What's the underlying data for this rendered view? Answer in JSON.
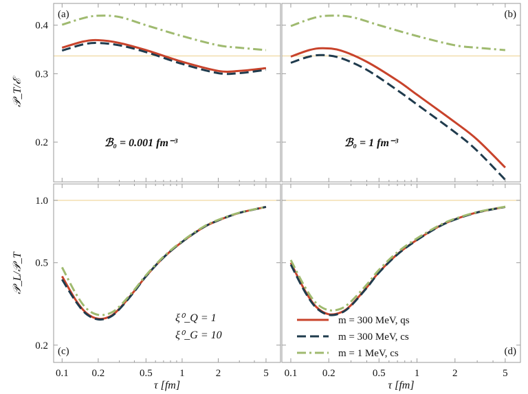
{
  "chart_data": {
    "type": "line",
    "x_label": "τ [fm]",
    "x_ticks": [
      "0.1",
      "0.2",
      "0.5",
      "1",
      "2",
      "5"
    ],
    "x_tick_values": [
      0.1,
      0.2,
      0.5,
      1,
      2,
      5
    ],
    "x_range": [
      0.085,
      6.6
    ],
    "x_scale": "log",
    "legend": [
      {
        "label": "m = 300 MeV, qs",
        "color": "#c8432b",
        "dash": "solid"
      },
      {
        "label": "m = 300 MeV, cs",
        "color": "#1f3b4d",
        "dash": "dashed"
      },
      {
        "label": "m = 1 MeV, cs",
        "color": "#9fba6f",
        "dash": "dashdot"
      }
    ],
    "reference_color": "#f0d9a0",
    "panels": [
      {
        "id": "a",
        "label": "(a)",
        "ylabel": "𝒫_T/ℰ",
        "y_scale": "log",
        "y_range": [
          0.158,
          0.455
        ],
        "y_ticks": [
          "0.2",
          "0.3",
          "0.4"
        ],
        "y_tick_values": [
          0.2,
          0.3,
          0.4
        ],
        "annotation": "ℬ₀ = 0.001 fm⁻³",
        "reference": 0.3333,
        "series": [
          {
            "name": "m = 300 MeV, qs",
            "x": [
              0.1,
              0.15,
              0.2,
              0.3,
              0.5,
              1,
              2,
              3,
              5
            ],
            "y": [
              0.35,
              0.363,
              0.366,
              0.36,
              0.345,
              0.322,
              0.305,
              0.305,
              0.31
            ]
          },
          {
            "name": "m = 300 MeV, cs",
            "x": [
              0.1,
              0.15,
              0.2,
              0.3,
              0.5,
              1,
              2,
              3,
              5
            ],
            "y": [
              0.344,
              0.357,
              0.36,
              0.355,
              0.341,
              0.318,
              0.301,
              0.301,
              0.307
            ]
          },
          {
            "name": "m = 1 MeV, cs",
            "x": [
              0.1,
              0.15,
              0.2,
              0.3,
              0.5,
              1,
              2,
              3,
              5
            ],
            "y": [
              0.401,
              0.417,
              0.423,
              0.42,
              0.4,
              0.375,
              0.355,
              0.35,
              0.345
            ]
          }
        ]
      },
      {
        "id": "b",
        "label": "(b)",
        "ylabel": "",
        "y_scale": "log",
        "y_range": [
          0.158,
          0.455
        ],
        "y_ticks": [
          "0.2",
          "0.3",
          "0.4"
        ],
        "y_tick_values": [
          0.2,
          0.3,
          0.4
        ],
        "annotation": "ℬ₀ = 1 fm⁻³",
        "reference": 0.3333,
        "series": [
          {
            "name": "m = 300 MeV, qs",
            "x": [
              0.1,
              0.14,
              0.18,
              0.25,
              0.4,
              0.7,
              1,
              2,
              3,
              5
            ],
            "y": [
              0.332,
              0.345,
              0.349,
              0.344,
              0.322,
              0.288,
              0.265,
              0.225,
              0.203,
              0.172
            ]
          },
          {
            "name": "m = 300 MeV, cs",
            "x": [
              0.1,
              0.14,
              0.18,
              0.25,
              0.4,
              0.7,
              1,
              2,
              3,
              5
            ],
            "y": [
              0.32,
              0.332,
              0.335,
              0.329,
              0.307,
              0.272,
              0.25,
              0.212,
              0.19,
              0.16
            ]
          },
          {
            "name": "m = 1 MeV, cs",
            "x": [
              0.1,
              0.15,
              0.2,
              0.3,
              0.5,
              1,
              2,
              3,
              5
            ],
            "y": [
              0.398,
              0.417,
              0.423,
              0.42,
              0.4,
              0.375,
              0.355,
              0.35,
              0.345
            ]
          }
        ]
      },
      {
        "id": "c",
        "label": "(c)",
        "ylabel": "𝒫_L/𝒫_T",
        "y_scale": "log",
        "y_range": [
          0.165,
          1.2
        ],
        "y_ticks": [
          "0.2",
          "0.5",
          "1.0"
        ],
        "y_tick_values": [
          0.2,
          0.5,
          1.0
        ],
        "annotation_lines": [
          "ξ⁰_Q = 1",
          "ξ⁰_G = 10"
        ],
        "reference": 1.0,
        "series": [
          {
            "name": "m = 300 MeV, qs",
            "x": [
              0.1,
              0.13,
              0.16,
              0.2,
              0.25,
              0.3,
              0.4,
              0.5,
              0.7,
              1,
              1.5,
              2,
              3,
              5
            ],
            "y": [
              0.43,
              0.33,
              0.285,
              0.268,
              0.275,
              0.3,
              0.365,
              0.43,
              0.53,
              0.63,
              0.74,
              0.8,
              0.87,
              0.93
            ]
          },
          {
            "name": "m = 300 MeV, cs",
            "x": [
              0.1,
              0.13,
              0.16,
              0.2,
              0.25,
              0.3,
              0.4,
              0.5,
              0.7,
              1,
              1.5,
              2,
              3,
              5
            ],
            "y": [
              0.415,
              0.325,
              0.282,
              0.266,
              0.273,
              0.298,
              0.363,
              0.43,
              0.53,
              0.63,
              0.74,
              0.8,
              0.87,
              0.93
            ]
          },
          {
            "name": "m = 1 MeV, cs",
            "x": [
              0.1,
              0.13,
              0.16,
              0.2,
              0.25,
              0.3,
              0.4,
              0.5,
              0.7,
              1,
              1.5,
              2,
              3,
              5
            ],
            "y": [
              0.475,
              0.355,
              0.3,
              0.28,
              0.285,
              0.307,
              0.37,
              0.435,
              0.535,
              0.635,
              0.745,
              0.805,
              0.872,
              0.93
            ]
          }
        ]
      },
      {
        "id": "d",
        "label": "(d)",
        "ylabel": "",
        "y_scale": "log",
        "y_range": [
          0.165,
          1.2
        ],
        "y_ticks": [
          "0.2",
          "0.5",
          "1.0"
        ],
        "y_tick_values": [
          0.2,
          0.5,
          1.0
        ],
        "reference": 1.0,
        "show_legend": true,
        "series": [
          {
            "name": "m = 300 MeV, qs",
            "x": [
              0.1,
              0.13,
              0.16,
              0.2,
              0.25,
              0.3,
              0.4,
              0.5,
              0.7,
              1,
              1.5,
              2,
              3,
              5
            ],
            "y": [
              0.5,
              0.365,
              0.305,
              0.282,
              0.288,
              0.312,
              0.38,
              0.45,
              0.55,
              0.645,
              0.75,
              0.81,
              0.875,
              0.93
            ]
          },
          {
            "name": "m = 300 MeV, cs",
            "x": [
              0.1,
              0.13,
              0.16,
              0.2,
              0.25,
              0.3,
              0.4,
              0.5,
              0.7,
              1,
              1.5,
              2,
              3,
              5
            ],
            "y": [
              0.49,
              0.36,
              0.302,
              0.28,
              0.286,
              0.31,
              0.378,
              0.448,
              0.548,
              0.643,
              0.748,
              0.808,
              0.874,
              0.93
            ]
          },
          {
            "name": "m = 1 MeV, cs",
            "x": [
              0.1,
              0.13,
              0.16,
              0.2,
              0.25,
              0.3,
              0.4,
              0.5,
              0.7,
              1,
              1.5,
              2,
              3,
              5
            ],
            "y": [
              0.515,
              0.38,
              0.318,
              0.295,
              0.3,
              0.325,
              0.392,
              0.462,
              0.562,
              0.655,
              0.757,
              0.815,
              0.878,
              0.932
            ]
          }
        ]
      }
    ]
  }
}
